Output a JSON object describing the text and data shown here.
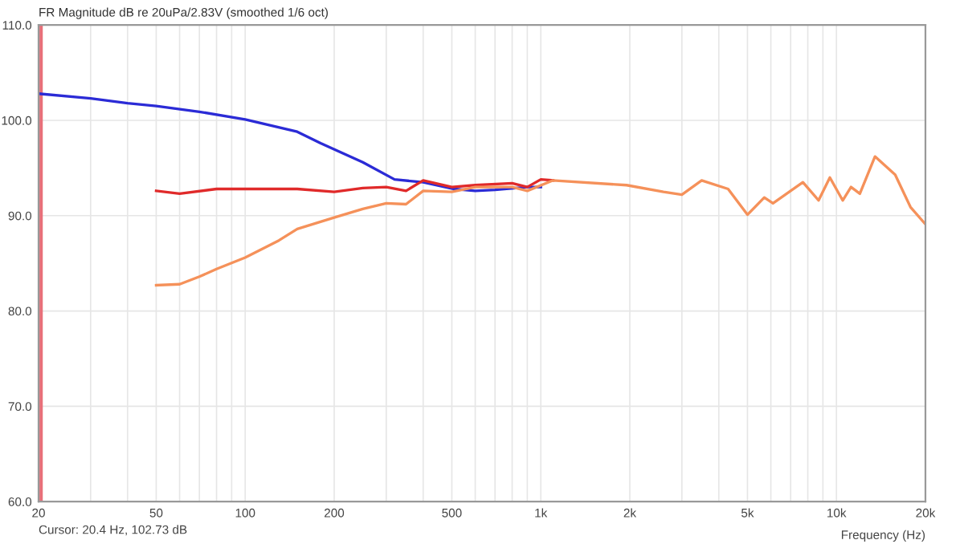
{
  "chart_data": {
    "type": "line",
    "title": "FR Magnitude dB re 20uPa/2.83V (smoothed 1/6 oct)",
    "xlabel": "Frequency (Hz)",
    "annotations": [
      "Cursor: 20.4 Hz, 102.73 dB"
    ],
    "log": "x",
    "grid": true,
    "line_style": "solid",
    "xlim": [
      20,
      20000
    ],
    "ylim": [
      60,
      110
    ],
    "xticks": [
      20,
      {
        "value": 30,
        "label": null
      },
      {
        "value": 40,
        "label": null
      },
      50,
      {
        "value": 60,
        "label": null
      },
      {
        "value": 70,
        "label": null
      },
      {
        "value": 80,
        "label": null
      },
      {
        "value": 90,
        "label": null
      },
      100,
      200,
      {
        "value": 300,
        "label": null
      },
      {
        "value": 400,
        "label": null
      },
      500,
      {
        "value": 600,
        "label": null
      },
      {
        "value": 700,
        "label": null
      },
      {
        "value": 800,
        "label": null
      },
      {
        "value": 900,
        "label": null
      },
      {
        "value": 1000,
        "label": "1k"
      },
      {
        "value": 2000,
        "label": "2k"
      },
      {
        "value": 3000,
        "label": null
      },
      {
        "value": 4000,
        "label": null
      },
      {
        "value": 5000,
        "label": "5k"
      },
      {
        "value": 6000,
        "label": null
      },
      {
        "value": 7000,
        "label": null
      },
      {
        "value": 8000,
        "label": null
      },
      {
        "value": 9000,
        "label": null
      },
      {
        "value": 10000,
        "label": "10k"
      },
      {
        "value": 20000,
        "label": "20k"
      }
    ],
    "yticks": [
      {
        "value": 60,
        "label": "60.0"
      },
      {
        "value": 70,
        "label": "70.0"
      },
      {
        "value": 80,
        "label": "80.0"
      },
      {
        "value": 90,
        "label": "90.0"
      },
      {
        "value": 100,
        "label": "100.0"
      },
      {
        "value": 110,
        "label": "110.0"
      }
    ],
    "ref_lines": [
      {
        "axis": "x",
        "value": 20.4,
        "color": "#e8707a"
      }
    ],
    "series": [
      {
        "color": "#2b2bd6",
        "x": [
          20,
          30,
          40,
          50,
          70,
          100,
          150,
          180,
          250,
          320,
          400,
          510,
          600,
          700,
          900,
          1000
        ],
        "values": [
          102.8,
          102.3,
          101.8,
          101.5,
          100.9,
          100.1,
          98.8,
          97.6,
          95.6,
          93.8,
          93.5,
          92.8,
          92.6,
          92.7,
          93.0,
          93.0
        ]
      },
      {
        "color": "#e02a2a",
        "x": [
          50,
          60,
          80,
          100,
          150,
          200,
          250,
          300,
          350,
          400,
          500,
          600,
          800,
          900,
          1000,
          1100
        ],
        "values": [
          92.6,
          92.3,
          92.8,
          92.8,
          92.8,
          92.5,
          92.9,
          93.0,
          92.6,
          93.7,
          93.0,
          93.2,
          93.4,
          93.0,
          93.8,
          93.7
        ]
      },
      {
        "color": "#f5915a",
        "x": [
          50,
          60,
          70,
          80,
          100,
          130,
          150,
          200,
          250,
          300,
          350,
          400,
          500,
          600,
          800,
          900,
          1100,
          1950,
          2600,
          3000,
          3500,
          4300,
          5000,
          5700,
          6100,
          7700,
          8700,
          9500,
          10500,
          11200,
          12000,
          13500,
          15800,
          17800,
          20000
        ],
        "values": [
          82.7,
          82.8,
          83.6,
          84.4,
          85.6,
          87.4,
          88.6,
          89.8,
          90.7,
          91.3,
          91.2,
          92.6,
          92.5,
          93.0,
          93.0,
          92.6,
          93.7,
          93.2,
          92.5,
          92.2,
          93.7,
          92.8,
          90.1,
          91.9,
          91.3,
          93.5,
          91.6,
          94.0,
          91.6,
          93.0,
          92.3,
          96.2,
          94.3,
          90.9,
          89.1
        ]
      }
    ]
  }
}
